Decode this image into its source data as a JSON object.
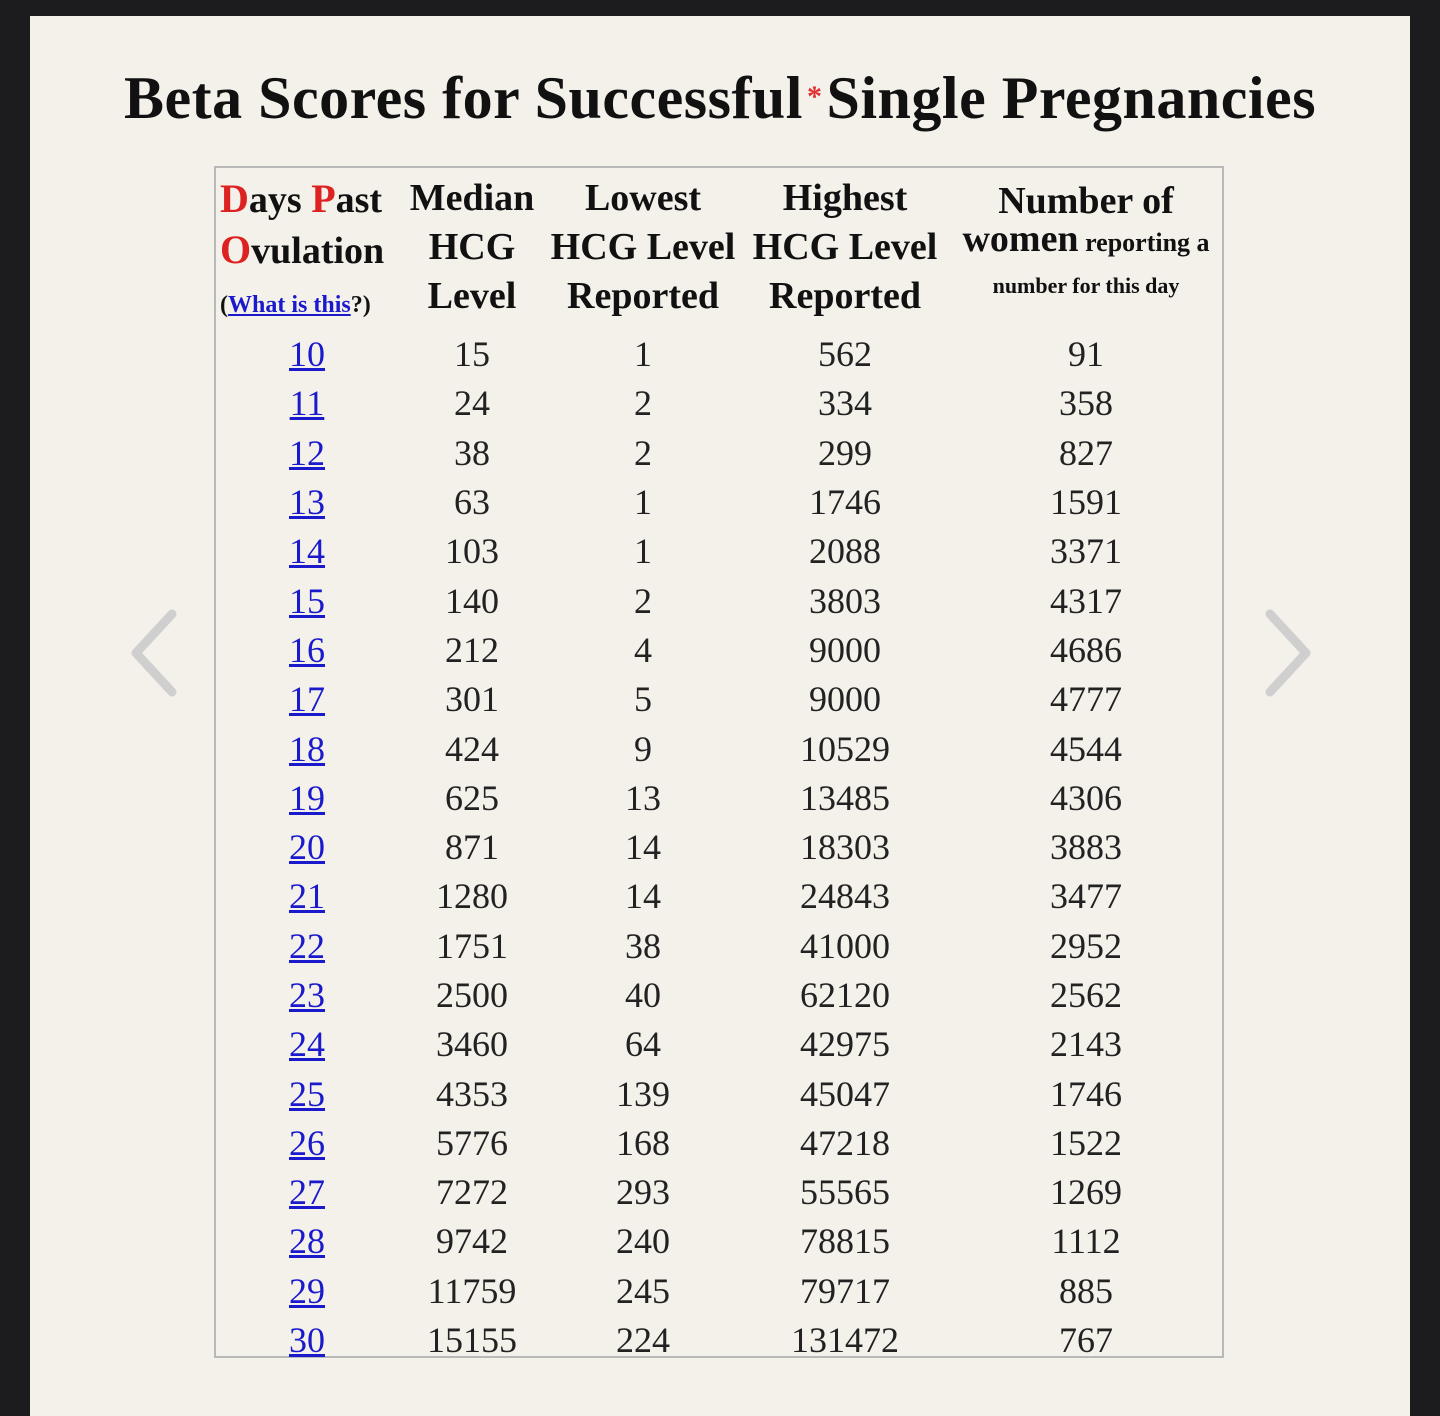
{
  "title": {
    "text": "Beta Scores for Successful",
    "asterisk": "*",
    "text2": "Single Pregnancies"
  },
  "header": {
    "col1": {
      "d": "D",
      "ays": "ays ",
      "p": "P",
      "ast": "ast",
      "o": "O",
      "vulation": "vulation",
      "what_open": "(",
      "what_link": "What is this",
      "what_close": "?)"
    },
    "col2": {
      "l1": "Median",
      "l2": "HCG",
      "l3": "Level"
    },
    "col3": {
      "l1": "Lowest",
      "l2": "HCG Level",
      "l3": "Reported"
    },
    "col4": {
      "l1": "Highest",
      "l2": "HCG Level",
      "l3": "Reported"
    },
    "col5": {
      "l1": "Number of",
      "l2a": "women",
      "l2b": " reporting a",
      "l3": "number for this day"
    }
  },
  "rows": [
    [
      "10",
      "15",
      "1",
      "562",
      "91"
    ],
    [
      "11",
      "24",
      "2",
      "334",
      "358"
    ],
    [
      "12",
      "38",
      "2",
      "299",
      "827"
    ],
    [
      "13",
      "63",
      "1",
      "1746",
      "1591"
    ],
    [
      "14",
      "103",
      "1",
      "2088",
      "3371"
    ],
    [
      "15",
      "140",
      "2",
      "3803",
      "4317"
    ],
    [
      "16",
      "212",
      "4",
      "9000",
      "4686"
    ],
    [
      "17",
      "301",
      "5",
      "9000",
      "4777"
    ],
    [
      "18",
      "424",
      "9",
      "10529",
      "4544"
    ],
    [
      "19",
      "625",
      "13",
      "13485",
      "4306"
    ],
    [
      "20",
      "871",
      "14",
      "18303",
      "3883"
    ],
    [
      "21",
      "1280",
      "14",
      "24843",
      "3477"
    ],
    [
      "22",
      "1751",
      "38",
      "41000",
      "2952"
    ],
    [
      "23",
      "2500",
      "40",
      "62120",
      "2562"
    ],
    [
      "24",
      "3460",
      "64",
      "42975",
      "2143"
    ],
    [
      "25",
      "4353",
      "139",
      "45047",
      "1746"
    ],
    [
      "26",
      "5776",
      "168",
      "47218",
      "1522"
    ],
    [
      "27",
      "7272",
      "293",
      "55565",
      "1269"
    ],
    [
      "28",
      "9742",
      "240",
      "78815",
      "1112"
    ],
    [
      "29",
      "11759",
      "245",
      "79717",
      "885"
    ],
    [
      "30",
      "15155",
      "224",
      "131472",
      "767"
    ]
  ],
  "nav": {
    "prev_icon": "chevron-left-icon",
    "next_icon": "chevron-right-icon"
  }
}
